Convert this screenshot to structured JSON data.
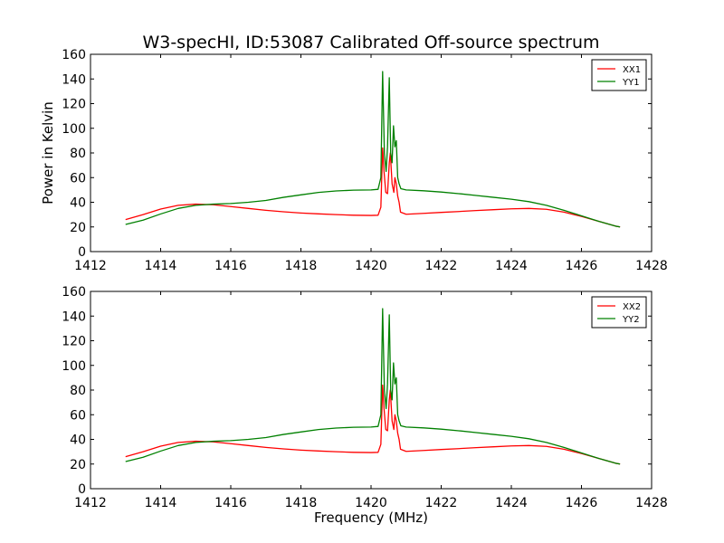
{
  "chart_data": [
    {
      "type": "line",
      "title": "W3-specHI, ID:53087 Calibrated Off-source spectrum",
      "xlabel": "",
      "ylabel": "Power in Kelvin",
      "xlim": [
        1412,
        1428
      ],
      "ylim": [
        0,
        160
      ],
      "xticks": [
        "1412",
        "1414",
        "1416",
        "1418",
        "1420",
        "1422",
        "1424",
        "1426",
        "1428"
      ],
      "yticks": [
        "0",
        "20",
        "40",
        "60",
        "80",
        "100",
        "120",
        "140",
        "160"
      ],
      "grid": false,
      "legend_position": "top-right",
      "series": [
        {
          "name": "XX1",
          "color": "#ff0000",
          "points": [
            [
              1413.0,
              26
            ],
            [
              1413.5,
              30
            ],
            [
              1414.0,
              34.5
            ],
            [
              1414.5,
              37.5
            ],
            [
              1415.0,
              38.5
            ],
            [
              1415.5,
              38
            ],
            [
              1416.0,
              36.5
            ],
            [
              1416.5,
              35
            ],
            [
              1417.0,
              33.5
            ],
            [
              1417.5,
              32.3
            ],
            [
              1418.0,
              31.3
            ],
            [
              1418.5,
              30.6
            ],
            [
              1419.0,
              30
            ],
            [
              1419.5,
              29.5
            ],
            [
              1420.0,
              29.3
            ],
            [
              1420.2,
              29.5
            ],
            [
              1420.28,
              36
            ],
            [
              1420.33,
              84
            ],
            [
              1420.37,
              65
            ],
            [
              1420.42,
              48
            ],
            [
              1420.47,
              47
            ],
            [
              1420.52,
              72
            ],
            [
              1420.55,
              80
            ],
            [
              1420.6,
              55
            ],
            [
              1420.65,
              48
            ],
            [
              1420.68,
              60
            ],
            [
              1420.72,
              55
            ],
            [
              1420.76,
              45
            ],
            [
              1420.8,
              40
            ],
            [
              1420.84,
              32
            ],
            [
              1421.0,
              30.3
            ],
            [
              1421.5,
              31
            ],
            [
              1422.0,
              31.8
            ],
            [
              1422.5,
              32.5
            ],
            [
              1423.0,
              33.3
            ],
            [
              1423.5,
              34
            ],
            [
              1424.0,
              34.7
            ],
            [
              1424.5,
              35
            ],
            [
              1425.0,
              34.3
            ],
            [
              1425.5,
              32
            ],
            [
              1426.0,
              28.5
            ],
            [
              1426.5,
              24.5
            ],
            [
              1427.0,
              20.5
            ],
            [
              1427.1,
              20
            ]
          ]
        },
        {
          "name": "YY1",
          "color": "#008000",
          "points": [
            [
              1413.0,
              22
            ],
            [
              1413.5,
              25.5
            ],
            [
              1414.0,
              30.5
            ],
            [
              1414.5,
              35
            ],
            [
              1415.0,
              37.5
            ],
            [
              1415.5,
              38.5
            ],
            [
              1416.0,
              39
            ],
            [
              1416.5,
              40
            ],
            [
              1417.0,
              41.5
            ],
            [
              1417.5,
              44
            ],
            [
              1418.0,
              46
            ],
            [
              1418.5,
              48
            ],
            [
              1419.0,
              49.2
            ],
            [
              1419.5,
              49.8
            ],
            [
              1420.0,
              50
            ],
            [
              1420.2,
              50.5
            ],
            [
              1420.28,
              60
            ],
            [
              1420.33,
              146
            ],
            [
              1420.38,
              80
            ],
            [
              1420.43,
              65
            ],
            [
              1420.47,
              85
            ],
            [
              1420.52,
              141
            ],
            [
              1420.56,
              80
            ],
            [
              1420.6,
              72
            ],
            [
              1420.64,
              102
            ],
            [
              1420.68,
              85
            ],
            [
              1420.72,
              90
            ],
            [
              1420.76,
              60
            ],
            [
              1420.8,
              55
            ],
            [
              1420.85,
              51
            ],
            [
              1421.0,
              50
            ],
            [
              1421.5,
              49.3
            ],
            [
              1422.0,
              48.3
            ],
            [
              1422.5,
              47
            ],
            [
              1423.0,
              45.5
            ],
            [
              1423.5,
              44
            ],
            [
              1424.0,
              42.5
            ],
            [
              1424.5,
              40.5
            ],
            [
              1425.0,
              37.5
            ],
            [
              1425.5,
              33.5
            ],
            [
              1426.0,
              29
            ],
            [
              1426.5,
              24.5
            ],
            [
              1427.0,
              20.5
            ],
            [
              1427.1,
              20
            ]
          ]
        }
      ]
    },
    {
      "type": "line",
      "title": "",
      "xlabel": "Frequency (MHz)",
      "ylabel": "",
      "xlim": [
        1412,
        1428
      ],
      "ylim": [
        0,
        160
      ],
      "xticks": [
        "1412",
        "1414",
        "1416",
        "1418",
        "1420",
        "1422",
        "1424",
        "1426",
        "1428"
      ],
      "yticks": [
        "0",
        "20",
        "40",
        "60",
        "80",
        "100",
        "120",
        "140",
        "160"
      ],
      "grid": false,
      "legend_position": "top-right",
      "series": [
        {
          "name": "XX2",
          "color": "#ff0000",
          "points": [
            [
              1413.0,
              26
            ],
            [
              1413.5,
              30
            ],
            [
              1414.0,
              34.5
            ],
            [
              1414.5,
              37.5
            ],
            [
              1415.0,
              38.5
            ],
            [
              1415.5,
              38
            ],
            [
              1416.0,
              36.5
            ],
            [
              1416.5,
              35
            ],
            [
              1417.0,
              33.5
            ],
            [
              1417.5,
              32.3
            ],
            [
              1418.0,
              31.3
            ],
            [
              1418.5,
              30.6
            ],
            [
              1419.0,
              30
            ],
            [
              1419.5,
              29.5
            ],
            [
              1420.0,
              29.3
            ],
            [
              1420.2,
              29.5
            ],
            [
              1420.28,
              36
            ],
            [
              1420.33,
              84
            ],
            [
              1420.37,
              65
            ],
            [
              1420.42,
              48
            ],
            [
              1420.47,
              47
            ],
            [
              1420.52,
              72
            ],
            [
              1420.55,
              80
            ],
            [
              1420.6,
              55
            ],
            [
              1420.65,
              48
            ],
            [
              1420.68,
              60
            ],
            [
              1420.72,
              55
            ],
            [
              1420.76,
              45
            ],
            [
              1420.8,
              40
            ],
            [
              1420.84,
              32
            ],
            [
              1421.0,
              30.3
            ],
            [
              1421.5,
              31
            ],
            [
              1422.0,
              31.8
            ],
            [
              1422.5,
              32.5
            ],
            [
              1423.0,
              33.3
            ],
            [
              1423.5,
              34
            ],
            [
              1424.0,
              34.7
            ],
            [
              1424.5,
              35
            ],
            [
              1425.0,
              34.3
            ],
            [
              1425.5,
              32
            ],
            [
              1426.0,
              28.5
            ],
            [
              1426.5,
              24.5
            ],
            [
              1427.0,
              20.5
            ],
            [
              1427.1,
              20
            ]
          ]
        },
        {
          "name": "YY2",
          "color": "#008000",
          "points": [
            [
              1413.0,
              22
            ],
            [
              1413.5,
              25.5
            ],
            [
              1414.0,
              30.5
            ],
            [
              1414.5,
              35
            ],
            [
              1415.0,
              37.5
            ],
            [
              1415.5,
              38.5
            ],
            [
              1416.0,
              39
            ],
            [
              1416.5,
              40
            ],
            [
              1417.0,
              41.5
            ],
            [
              1417.5,
              44
            ],
            [
              1418.0,
              46
            ],
            [
              1418.5,
              48
            ],
            [
              1419.0,
              49.2
            ],
            [
              1419.5,
              49.8
            ],
            [
              1420.0,
              50
            ],
            [
              1420.2,
              50.5
            ],
            [
              1420.28,
              60
            ],
            [
              1420.33,
              146
            ],
            [
              1420.38,
              80
            ],
            [
              1420.43,
              65
            ],
            [
              1420.47,
              85
            ],
            [
              1420.52,
              141
            ],
            [
              1420.56,
              80
            ],
            [
              1420.6,
              72
            ],
            [
              1420.64,
              102
            ],
            [
              1420.68,
              85
            ],
            [
              1420.72,
              90
            ],
            [
              1420.76,
              60
            ],
            [
              1420.8,
              55
            ],
            [
              1420.85,
              51
            ],
            [
              1421.0,
              50
            ],
            [
              1421.5,
              49.3
            ],
            [
              1422.0,
              48.3
            ],
            [
              1422.5,
              47
            ],
            [
              1423.0,
              45.5
            ],
            [
              1423.5,
              44
            ],
            [
              1424.0,
              42.5
            ],
            [
              1424.5,
              40.5
            ],
            [
              1425.0,
              37.5
            ],
            [
              1425.5,
              33.5
            ],
            [
              1426.0,
              29
            ],
            [
              1426.5,
              24.5
            ],
            [
              1427.0,
              20.5
            ],
            [
              1427.1,
              20
            ]
          ]
        }
      ]
    }
  ]
}
